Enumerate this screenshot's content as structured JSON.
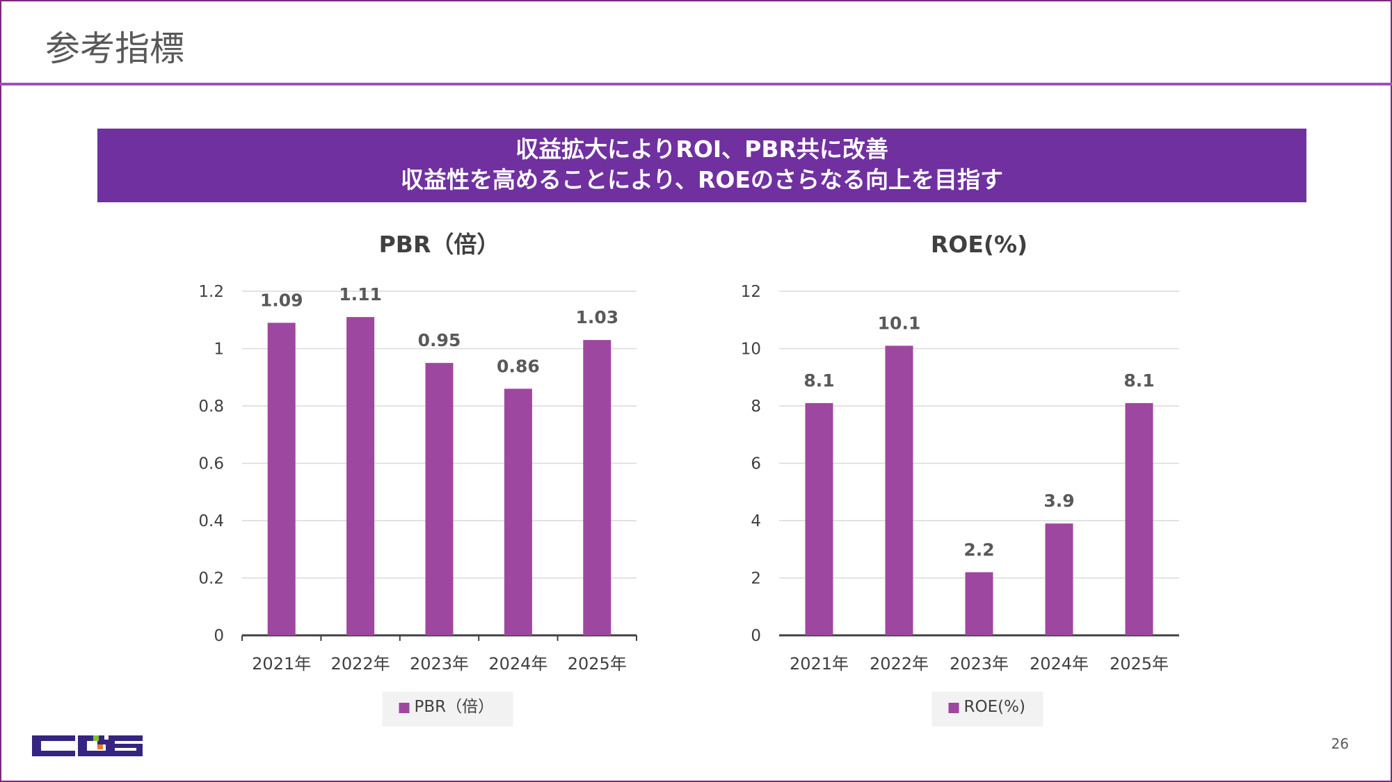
{
  "header": {
    "title": "参考指標"
  },
  "banner": {
    "line1": "収益拡大によりROI、PBR共に改善",
    "line2": "収益性を高めることにより、ROEのさらなる向上を目指す"
  },
  "page_number": "26",
  "logo": {
    "text": "CGS"
  },
  "colors": {
    "bar": "#9e47a0",
    "banner": "#7030a0",
    "accent": "#9b4fc6"
  },
  "chart_data": [
    {
      "type": "bar",
      "title": "PBR（倍）",
      "categories": [
        "2021年",
        "2022年",
        "2023年",
        "2024年",
        "2025年"
      ],
      "values": [
        1.09,
        1.11,
        0.95,
        0.86,
        1.03
      ],
      "labels": [
        "1.09",
        "1.11",
        "0.95",
        "0.86",
        "1.03"
      ],
      "ylim": [
        0,
        1.2
      ],
      "yticks": [
        "0",
        "0.2",
        "0.4",
        "0.6",
        "0.8",
        "1",
        "1.2"
      ],
      "legend": "PBR（倍）",
      "legend_position": "bottom",
      "grid": true
    },
    {
      "type": "bar",
      "title": "ROE(%)",
      "categories": [
        "2021年",
        "2022年",
        "2023年",
        "2024年",
        "2025年"
      ],
      "values": [
        8.1,
        10.1,
        2.2,
        3.9,
        8.1
      ],
      "labels": [
        "8.1",
        "10.1",
        "2.2",
        "3.9",
        "8.1"
      ],
      "ylim": [
        0,
        12
      ],
      "yticks": [
        "0",
        "2",
        "4",
        "6",
        "8",
        "10",
        "12"
      ],
      "legend": "ROE(%)",
      "legend_position": "bottom",
      "grid": true
    }
  ]
}
